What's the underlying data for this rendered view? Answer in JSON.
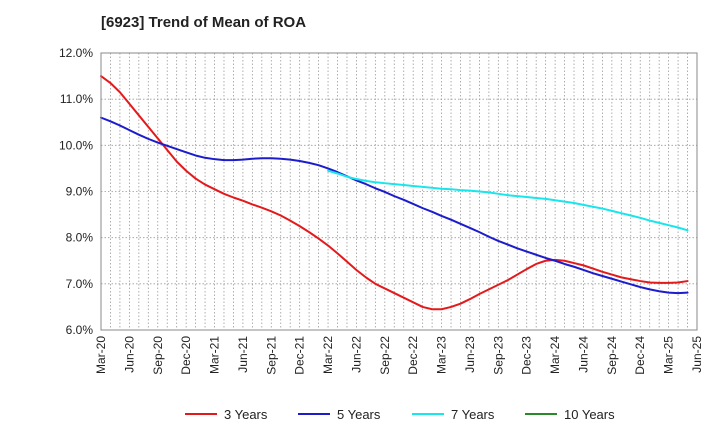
{
  "chart_data": {
    "type": "line",
    "title": "[6923]  Trend of Mean of ROA",
    "xlabel": "",
    "ylabel": "",
    "ylim": [
      6.0,
      12.0
    ],
    "y_ticks": [
      "6.0%",
      "7.0%",
      "8.0%",
      "9.0%",
      "10.0%",
      "11.0%",
      "12.0%"
    ],
    "x_ticks": [
      "Mar-20",
      "Jun-20",
      "Sep-20",
      "Dec-20",
      "Mar-21",
      "Jun-21",
      "Sep-21",
      "Dec-21",
      "Mar-22",
      "Jun-22",
      "Sep-22",
      "Dec-22",
      "Mar-23",
      "Jun-23",
      "Sep-23",
      "Dec-23",
      "Mar-24",
      "Jun-24",
      "Sep-24",
      "Dec-24",
      "Mar-25",
      "Jun-25"
    ],
    "months": 63,
    "grid": true,
    "legend_position": "bottom",
    "series": [
      {
        "name": "3 Years",
        "color": "#e31a1c",
        "start_month": 0,
        "values": [
          11.5,
          11.35,
          11.15,
          10.9,
          10.65,
          10.4,
          10.15,
          9.9,
          9.65,
          9.45,
          9.28,
          9.15,
          9.05,
          8.95,
          8.87,
          8.8,
          8.72,
          8.65,
          8.57,
          8.48,
          8.37,
          8.25,
          8.12,
          7.98,
          7.83,
          7.66,
          7.48,
          7.3,
          7.14,
          7.0,
          6.9,
          6.8,
          6.7,
          6.6,
          6.5,
          6.45,
          6.45,
          6.5,
          6.57,
          6.67,
          6.78,
          6.88,
          6.98,
          7.08,
          7.2,
          7.32,
          7.43,
          7.5,
          7.52,
          7.5,
          7.45,
          7.4,
          7.33,
          7.26,
          7.2,
          7.14,
          7.1,
          7.06,
          7.03,
          7.02,
          7.02,
          7.03,
          7.06
        ]
      },
      {
        "name": "5 Years",
        "color": "#1c1ccc",
        "start_month": 0,
        "values": [
          10.6,
          10.52,
          10.43,
          10.33,
          10.23,
          10.14,
          10.06,
          9.99,
          9.92,
          9.85,
          9.78,
          9.73,
          9.7,
          9.68,
          9.68,
          9.69,
          9.71,
          9.72,
          9.72,
          9.71,
          9.69,
          9.66,
          9.62,
          9.57,
          9.5,
          9.42,
          9.33,
          9.24,
          9.16,
          9.07,
          8.99,
          8.9,
          8.82,
          8.73,
          8.64,
          8.56,
          8.47,
          8.39,
          8.3,
          8.21,
          8.12,
          8.02,
          7.93,
          7.85,
          7.77,
          7.7,
          7.63,
          7.56,
          7.5,
          7.43,
          7.37,
          7.3,
          7.23,
          7.17,
          7.11,
          7.05,
          6.99,
          6.93,
          6.88,
          6.84,
          6.81,
          6.8,
          6.81
        ]
      },
      {
        "name": "7 Years",
        "color": "#19e5ec",
        "start_month": 24,
        "values": [
          9.45,
          9.39,
          9.32,
          9.27,
          9.23,
          9.2,
          9.18,
          9.16,
          9.14,
          9.12,
          9.1,
          9.08,
          9.06,
          9.05,
          9.03,
          9.02,
          9.0,
          8.98,
          8.95,
          8.92,
          8.9,
          8.88,
          8.86,
          8.84,
          8.81,
          8.78,
          8.75,
          8.71,
          8.67,
          8.63,
          8.58,
          8.53,
          8.48,
          8.43,
          8.37,
          8.32,
          8.27,
          8.22,
          8.16
        ]
      },
      {
        "name": "10 Years",
        "color": "#2a8a2a",
        "start_month": 0,
        "values": []
      }
    ]
  }
}
